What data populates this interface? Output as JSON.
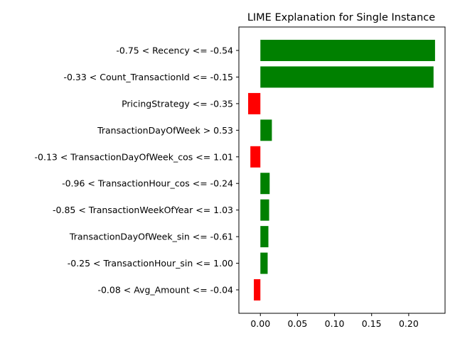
{
  "chart_data": {
    "type": "bar",
    "orientation": "horizontal",
    "title": "LIME Explanation for Single Instance",
    "xlabel": "",
    "ylabel": "",
    "xlim": [
      -0.029,
      0.249
    ],
    "x_ticks": [
      0.0,
      0.05,
      0.1,
      0.15,
      0.2
    ],
    "x_tick_labels": [
      "0.00",
      "0.05",
      "0.10",
      "0.15",
      "0.20"
    ],
    "grid": false,
    "positive_color": "#008000",
    "negative_color": "#ff0000",
    "categories": [
      "-0.75 < Recency <= -0.54",
      "-0.33 < Count_TransactionId <= -0.15",
      "PricingStrategy <= -0.35",
      "TransactionDayOfWeek > 0.53",
      "-0.13 < TransactionDayOfWeek_cos <= 1.01",
      "-0.96 < TransactionHour_cos <= -0.24",
      "-0.85 < TransactionWeekOfYear <= 1.03",
      "TransactionDayOfWeek_sin <= -0.61",
      "-0.25 < TransactionHour_sin <= 1.00",
      "-0.08 < Avg_Amount <= -0.04"
    ],
    "values": [
      0.2355,
      0.2335,
      -0.0165,
      0.0155,
      -0.0135,
      0.0125,
      0.0118,
      0.0108,
      0.0098,
      -0.0088
    ]
  }
}
